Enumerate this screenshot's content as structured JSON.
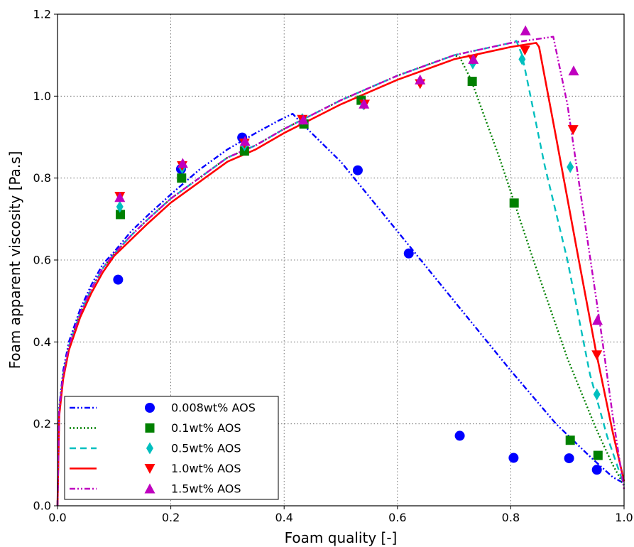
{
  "chart_data": {
    "type": "scatter",
    "xlabel": "Foam quality [-]",
    "ylabel": "Foam apparent viscosity [Pa.s]",
    "xlim": [
      0.0,
      1.0
    ],
    "ylim": [
      0.0,
      1.2
    ],
    "x_ticks": [
      "0.0",
      "0.2",
      "0.4",
      "0.6",
      "0.8",
      "1.0"
    ],
    "y_ticks": [
      "0.0",
      "0.2",
      "0.4",
      "0.6",
      "0.8",
      "1.0",
      "1.2"
    ],
    "grid": true,
    "legend_position": "bottom-left",
    "series": [
      {
        "name": "0.008wt% AOS",
        "color": "#0000ff",
        "marker": "circle",
        "line_style": "dashdotdot",
        "points": [
          [
            0.107,
            0.552
          ],
          [
            0.218,
            0.822
          ],
          [
            0.326,
            0.899
          ],
          [
            0.53,
            0.819
          ],
          [
            0.62,
            0.616
          ],
          [
            0.71,
            0.171
          ],
          [
            0.805,
            0.117
          ],
          [
            0.903,
            0.116
          ],
          [
            0.952,
            0.088
          ]
        ],
        "fit": [
          [
            0.0,
            0.0
          ],
          [
            0.003,
            0.24
          ],
          [
            0.01,
            0.33
          ],
          [
            0.02,
            0.4
          ],
          [
            0.04,
            0.48
          ],
          [
            0.06,
            0.54
          ],
          [
            0.08,
            0.59
          ],
          [
            0.1,
            0.62
          ],
          [
            0.13,
            0.67
          ],
          [
            0.16,
            0.71
          ],
          [
            0.2,
            0.76
          ],
          [
            0.25,
            0.82
          ],
          [
            0.3,
            0.87
          ],
          [
            0.35,
            0.91
          ],
          [
            0.39,
            0.94
          ],
          [
            0.415,
            0.957
          ],
          [
            0.43,
            0.935
          ],
          [
            0.5,
            0.84
          ],
          [
            0.6,
            0.67
          ],
          [
            0.7,
            0.5
          ],
          [
            0.8,
            0.33
          ],
          [
            0.88,
            0.2
          ],
          [
            0.94,
            0.12
          ],
          [
            0.98,
            0.07
          ],
          [
            1.0,
            0.055
          ]
        ]
      },
      {
        "name": "0.1wt% AOS",
        "color": "#008000",
        "marker": "square",
        "line_style": "dotted",
        "points": [
          [
            0.111,
            0.711
          ],
          [
            0.219,
            0.8
          ],
          [
            0.33,
            0.866
          ],
          [
            0.435,
            0.932
          ],
          [
            0.536,
            0.99
          ],
          [
            0.732,
            1.036
          ],
          [
            0.806,
            0.739
          ],
          [
            0.905,
            0.16
          ],
          [
            0.954,
            0.123
          ]
        ],
        "fit": [
          [
            0.0,
            0.0
          ],
          [
            0.003,
            0.23
          ],
          [
            0.01,
            0.32
          ],
          [
            0.02,
            0.39
          ],
          [
            0.04,
            0.47
          ],
          [
            0.06,
            0.53
          ],
          [
            0.08,
            0.58
          ],
          [
            0.1,
            0.615
          ],
          [
            0.13,
            0.66
          ],
          [
            0.16,
            0.7
          ],
          [
            0.2,
            0.75
          ],
          [
            0.25,
            0.8
          ],
          [
            0.3,
            0.85
          ],
          [
            0.35,
            0.88
          ],
          [
            0.4,
            0.92
          ],
          [
            0.45,
            0.955
          ],
          [
            0.5,
            0.99
          ],
          [
            0.55,
            1.02
          ],
          [
            0.6,
            1.05
          ],
          [
            0.65,
            1.075
          ],
          [
            0.7,
            1.1
          ],
          [
            0.71,
            1.095
          ],
          [
            0.73,
            1.04
          ],
          [
            0.78,
            0.85
          ],
          [
            0.84,
            0.6
          ],
          [
            0.9,
            0.36
          ],
          [
            0.95,
            0.19
          ],
          [
            0.98,
            0.1
          ],
          [
            1.0,
            0.05
          ]
        ]
      },
      {
        "name": "0.5wt% AOS",
        "color": "#00bfbf",
        "marker": "thin_diamond",
        "line_style": "dashed",
        "points": [
          [
            0.11,
            0.73
          ],
          [
            0.22,
            0.825
          ],
          [
            0.33,
            0.88
          ],
          [
            0.432,
            0.944
          ],
          [
            0.54,
            0.98
          ],
          [
            0.64,
            1.035
          ],
          [
            0.733,
            1.08
          ],
          [
            0.82,
            1.09
          ],
          [
            0.905,
            0.827
          ],
          [
            0.952,
            0.272
          ]
        ],
        "fit": [
          [
            0.0,
            0.0
          ],
          [
            0.003,
            0.23
          ],
          [
            0.01,
            0.32
          ],
          [
            0.02,
            0.39
          ],
          [
            0.04,
            0.47
          ],
          [
            0.06,
            0.53
          ],
          [
            0.08,
            0.58
          ],
          [
            0.1,
            0.615
          ],
          [
            0.13,
            0.66
          ],
          [
            0.16,
            0.7
          ],
          [
            0.2,
            0.75
          ],
          [
            0.25,
            0.8
          ],
          [
            0.3,
            0.85
          ],
          [
            0.35,
            0.88
          ],
          [
            0.4,
            0.92
          ],
          [
            0.45,
            0.955
          ],
          [
            0.5,
            0.99
          ],
          [
            0.55,
            1.02
          ],
          [
            0.6,
            1.05
          ],
          [
            0.65,
            1.075
          ],
          [
            0.7,
            1.1
          ],
          [
            0.75,
            1.115
          ],
          [
            0.8,
            1.13
          ],
          [
            0.81,
            1.135
          ],
          [
            0.82,
            1.1
          ],
          [
            0.86,
            0.83
          ],
          [
            0.9,
            0.6
          ],
          [
            0.94,
            0.32
          ],
          [
            0.97,
            0.17
          ],
          [
            1.0,
            0.05
          ]
        ]
      },
      {
        "name": "1.0wt% AOS",
        "color": "#ff0000",
        "marker": "triangle_down",
        "line_style": "solid",
        "points": [
          [
            0.11,
            0.755
          ],
          [
            0.22,
            0.83
          ],
          [
            0.33,
            0.885
          ],
          [
            0.432,
            0.943
          ],
          [
            0.542,
            0.98
          ],
          [
            0.64,
            1.03
          ],
          [
            0.733,
            1.09
          ],
          [
            0.825,
            1.112
          ],
          [
            0.91,
            0.918
          ],
          [
            0.952,
            0.368
          ]
        ],
        "fit": [
          [
            0.0,
            0.0
          ],
          [
            0.003,
            0.22
          ],
          [
            0.01,
            0.31
          ],
          [
            0.02,
            0.38
          ],
          [
            0.04,
            0.46
          ],
          [
            0.06,
            0.52
          ],
          [
            0.08,
            0.57
          ],
          [
            0.1,
            0.61
          ],
          [
            0.13,
            0.65
          ],
          [
            0.16,
            0.69
          ],
          [
            0.2,
            0.74
          ],
          [
            0.25,
            0.79
          ],
          [
            0.3,
            0.84
          ],
          [
            0.35,
            0.87
          ],
          [
            0.4,
            0.91
          ],
          [
            0.45,
            0.945
          ],
          [
            0.5,
            0.98
          ],
          [
            0.55,
            1.01
          ],
          [
            0.6,
            1.04
          ],
          [
            0.65,
            1.065
          ],
          [
            0.7,
            1.09
          ],
          [
            0.75,
            1.105
          ],
          [
            0.8,
            1.12
          ],
          [
            0.845,
            1.13
          ],
          [
            0.85,
            1.12
          ],
          [
            0.88,
            0.9
          ],
          [
            0.92,
            0.6
          ],
          [
            0.95,
            0.38
          ],
          [
            0.98,
            0.18
          ],
          [
            1.0,
            0.06
          ]
        ]
      },
      {
        "name": "1.5wt% AOS",
        "color": "#bf00bf",
        "marker": "triangle_up",
        "line_style": "dashdotdot",
        "points": [
          [
            0.11,
            0.753
          ],
          [
            0.221,
            0.836
          ],
          [
            0.331,
            0.89
          ],
          [
            0.434,
            0.942
          ],
          [
            0.541,
            0.981
          ],
          [
            0.64,
            1.04
          ],
          [
            0.734,
            1.09
          ],
          [
            0.826,
            1.16
          ],
          [
            0.911,
            1.062
          ],
          [
            0.953,
            0.453
          ]
        ],
        "fit": [
          [
            0.0,
            0.0
          ],
          [
            0.003,
            0.23
          ],
          [
            0.01,
            0.32
          ],
          [
            0.02,
            0.39
          ],
          [
            0.04,
            0.47
          ],
          [
            0.06,
            0.53
          ],
          [
            0.08,
            0.58
          ],
          [
            0.1,
            0.615
          ],
          [
            0.13,
            0.66
          ],
          [
            0.16,
            0.7
          ],
          [
            0.2,
            0.75
          ],
          [
            0.25,
            0.8
          ],
          [
            0.3,
            0.85
          ],
          [
            0.35,
            0.88
          ],
          [
            0.4,
            0.92
          ],
          [
            0.45,
            0.955
          ],
          [
            0.5,
            0.99
          ],
          [
            0.55,
            1.02
          ],
          [
            0.6,
            1.05
          ],
          [
            0.65,
            1.075
          ],
          [
            0.7,
            1.1
          ],
          [
            0.75,
            1.115
          ],
          [
            0.8,
            1.13
          ],
          [
            0.85,
            1.14
          ],
          [
            0.875,
            1.145
          ],
          [
            0.9,
            0.98
          ],
          [
            0.93,
            0.7
          ],
          [
            0.96,
            0.42
          ],
          [
            0.98,
            0.22
          ],
          [
            1.0,
            0.04
          ]
        ]
      }
    ]
  }
}
